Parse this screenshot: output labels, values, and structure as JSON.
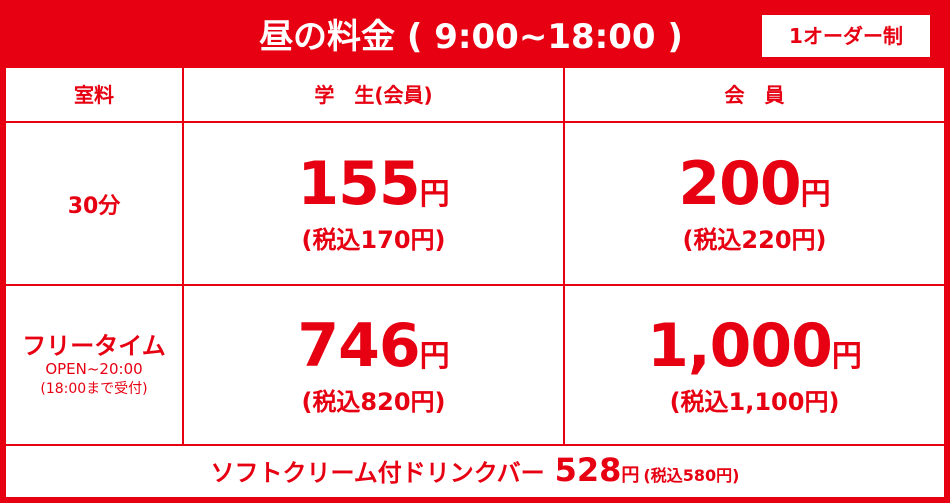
{
  "header": {
    "title": "昼の料金 ( 9:00~18:00 )",
    "badge": "1オーダー制"
  },
  "table": {
    "columns": [
      "室料",
      "学　生(会員)",
      "会　員"
    ],
    "rows": [
      {
        "label": "30分",
        "cells": [
          {
            "price": "155",
            "unit": "円",
            "tax": "(税込170円)"
          },
          {
            "price": "200",
            "unit": "円",
            "tax": "(税込220円)"
          }
        ]
      },
      {
        "label": "フリータイム",
        "note": [
          "OPEN~20:00",
          "(18:00まで受付)"
        ],
        "cells": [
          {
            "price": "746",
            "unit": "円",
            "tax": "(税込820円)"
          },
          {
            "price": "1,000",
            "unit": "円",
            "tax": "(税込1,100円)"
          }
        ]
      }
    ]
  },
  "footer": {
    "item": "ソフトクリーム付ドリンクバー",
    "price": "528",
    "unit": "円",
    "tax": "(税込580円)"
  }
}
